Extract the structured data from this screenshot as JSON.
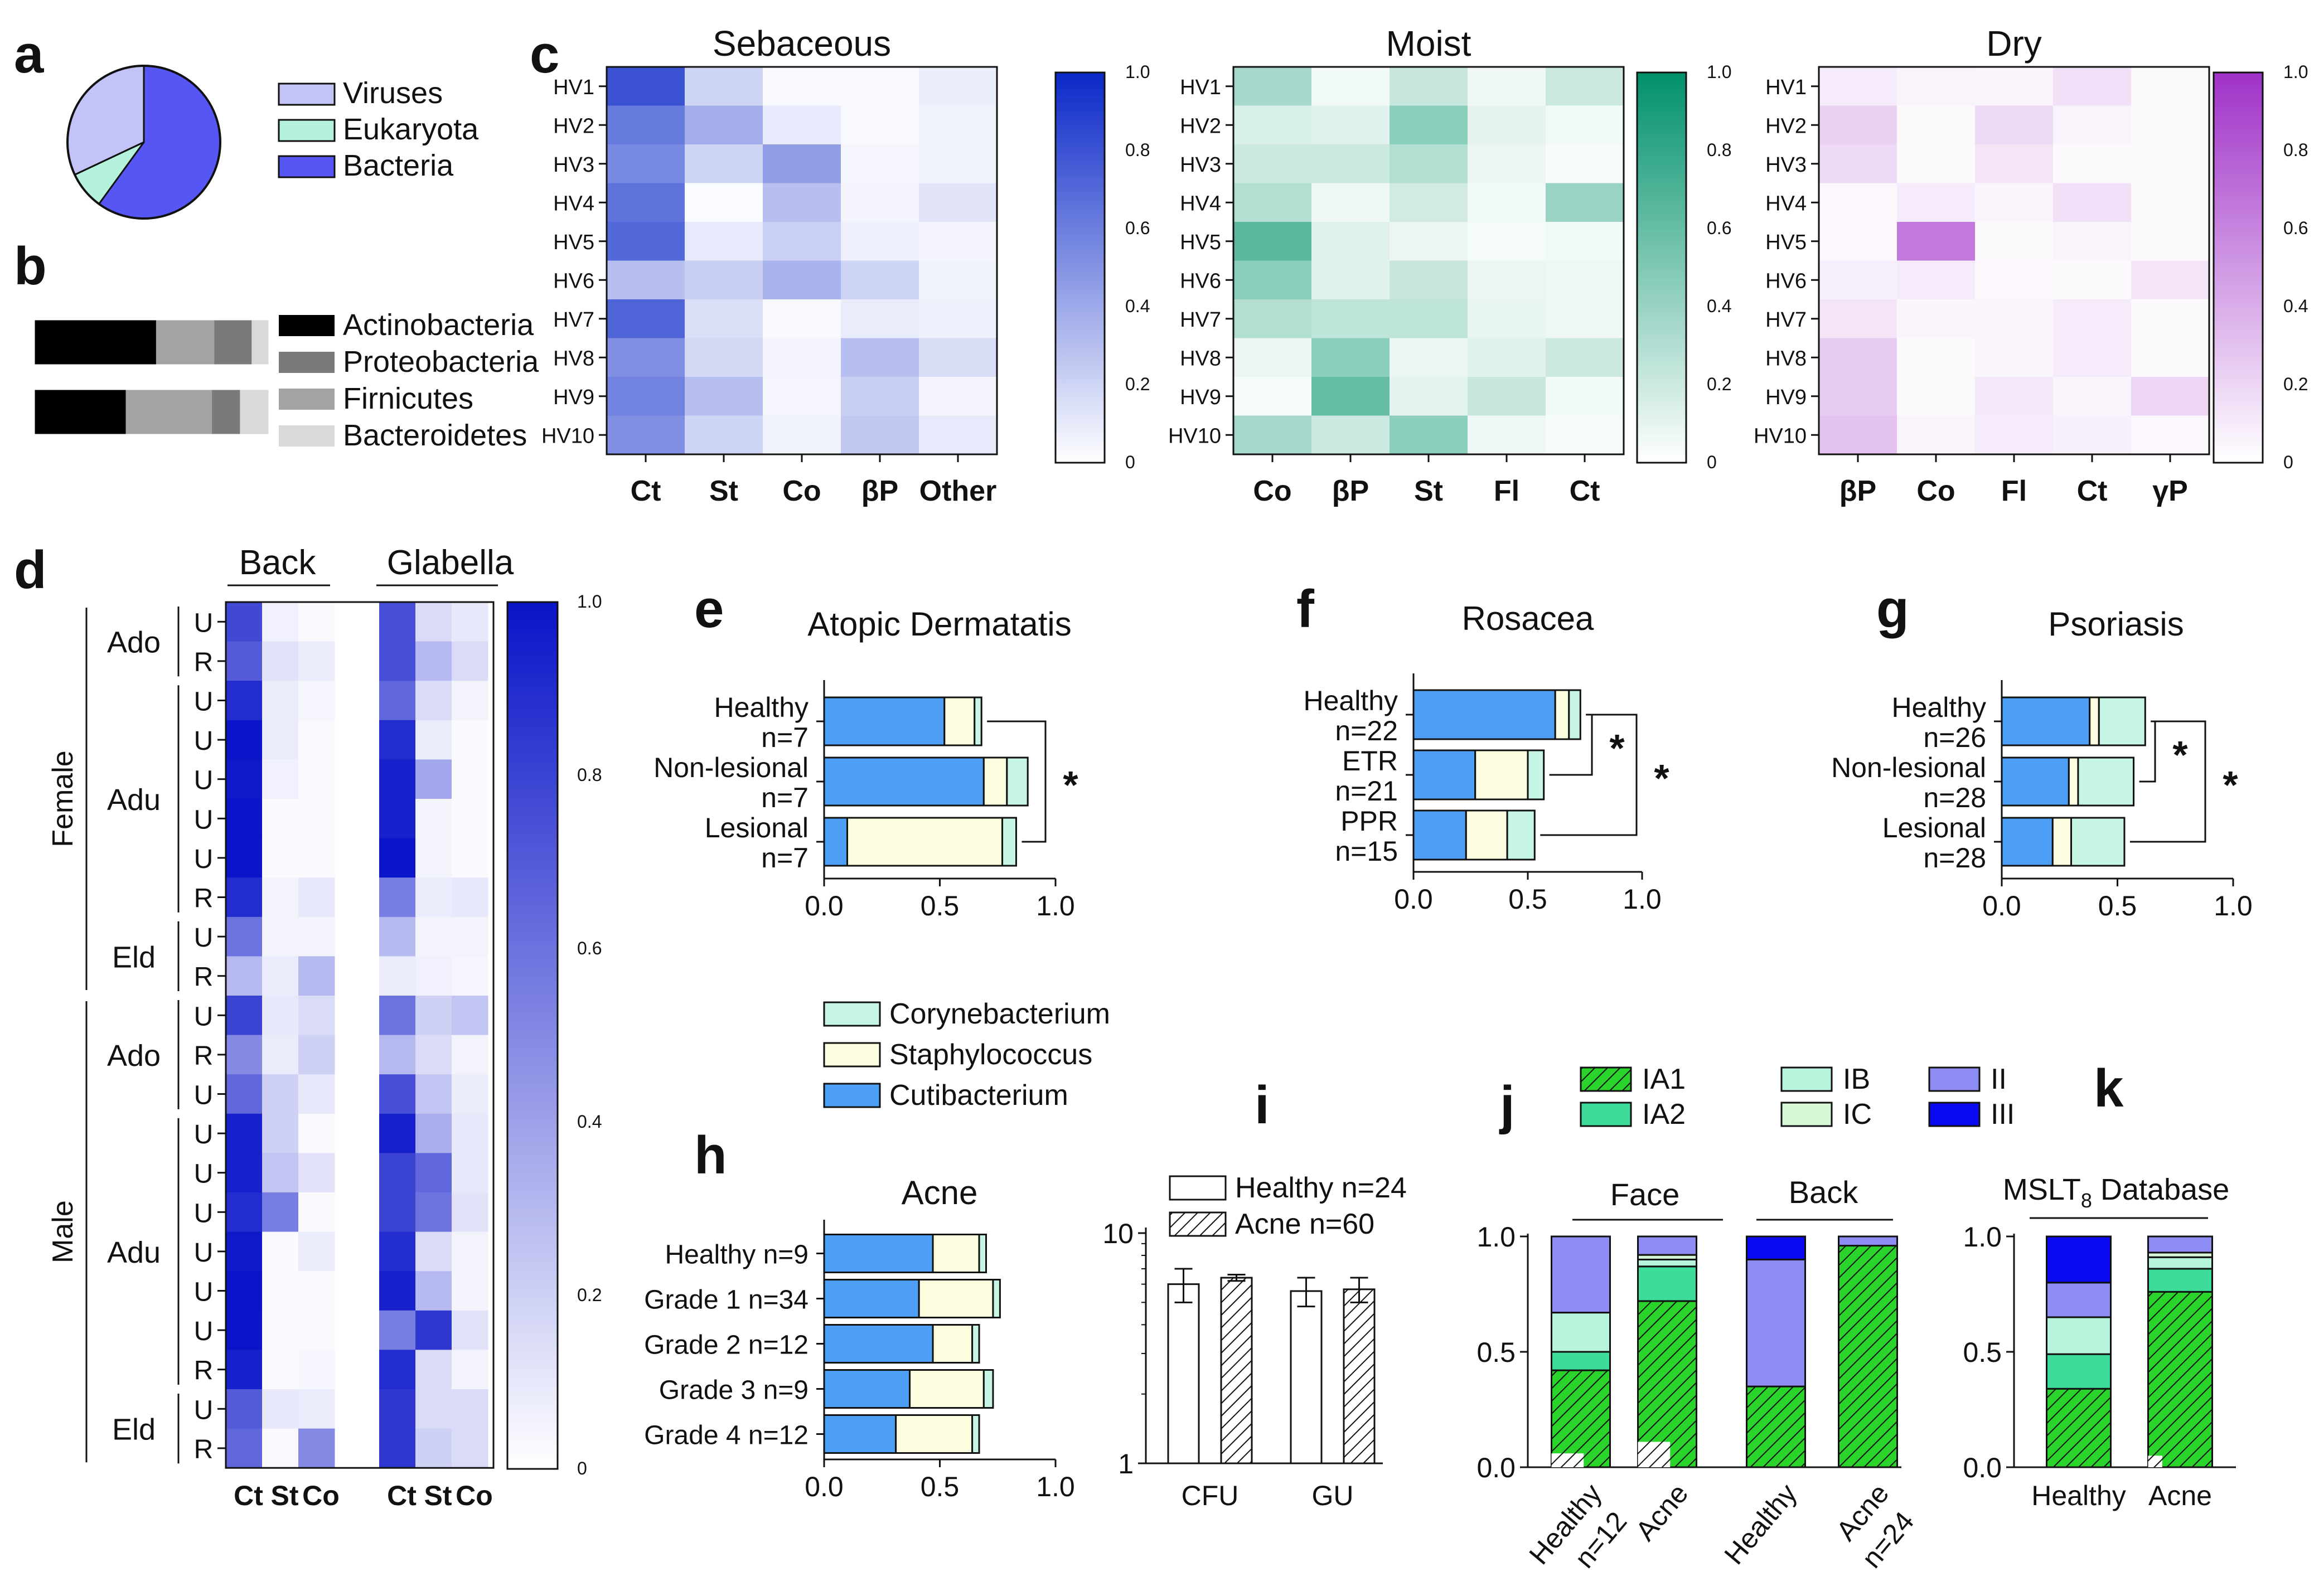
{
  "panel_letters": [
    "a",
    "b",
    "c",
    "d",
    "e",
    "f",
    "g",
    "h",
    "i",
    "j",
    "k"
  ],
  "chart_data": [
    {
      "id": "a",
      "type": "pie",
      "title": "",
      "slices": [
        {
          "label": "Bacteria",
          "value": 60,
          "color": "#5656f5"
        },
        {
          "label": "Eukaryota",
          "value": 8,
          "color": "#b4f2dc"
        },
        {
          "label": "Viruses",
          "value": 32,
          "color": "#c3c3f7"
        }
      ],
      "legend": [
        "Viruses",
        "Eukaryota",
        "Bacteria"
      ],
      "legend_colors": [
        "#c3c3f7",
        "#b4f2dc",
        "#5656f5"
      ]
    },
    {
      "id": "b",
      "type": "bar",
      "orientation": "horizontal-stacked",
      "categories": [
        "Actinobacteria",
        "Proteobacteria",
        "Firnicutes",
        "Bacteroidetes"
      ],
      "stack_order": [
        "Actinobacteria",
        "Firnicutes",
        "Proteobacteria",
        "Bacteroidetes"
      ],
      "colors": {
        "Actinobacteria": "#000000",
        "Proteobacteria": "#7a7a7a",
        "Firnicutes": "#a3a3a3",
        "Bacteroidetes": "#d9d9d9"
      },
      "rows": [
        {
          "values": {
            "Actinobacteria": 52,
            "Firnicutes": 25,
            "Proteobacteria": 16,
            "Bacteroidetes": 7
          }
        },
        {
          "values": {
            "Actinobacteria": 39,
            "Firnicutes": 37,
            "Proteobacteria": 12,
            "Bacteroidetes": 12
          }
        }
      ]
    },
    {
      "id": "c",
      "type": "heatmap",
      "color_range": [
        0,
        1
      ],
      "colorbar_ticks": [
        "1.0",
        "0.8",
        "0.6",
        "0.4",
        "0.2",
        "0"
      ],
      "row_labels": [
        "HV1",
        "HV2",
        "HV3",
        "HV4",
        "HV5",
        "HV6",
        "HV7",
        "HV8",
        "HV9",
        "HV10"
      ],
      "maps": [
        {
          "title": "Sebaceous",
          "color": "#0a28c8",
          "columns": [
            "Ct",
            "St",
            "Co",
            "βP",
            "Other"
          ],
          "values": [
            [
              0.8,
              0.2,
              0.03,
              0.03,
              0.08
            ],
            [
              0.62,
              0.38,
              0.1,
              0.03,
              0.06
            ],
            [
              0.55,
              0.2,
              0.45,
              0.04,
              0.06
            ],
            [
              0.65,
              0.02,
              0.3,
              0.05,
              0.12
            ],
            [
              0.7,
              0.1,
              0.22,
              0.07,
              0.05
            ],
            [
              0.3,
              0.23,
              0.35,
              0.2,
              0.06
            ],
            [
              0.72,
              0.15,
              0.03,
              0.09,
              0.07
            ],
            [
              0.52,
              0.18,
              0.05,
              0.3,
              0.16
            ],
            [
              0.58,
              0.3,
              0.04,
              0.23,
              0.05
            ],
            [
              0.52,
              0.2,
              0.06,
              0.25,
              0.1
            ]
          ]
        },
        {
          "title": "Moist",
          "color": "#00916a",
          "columns": [
            "Co",
            "βP",
            "St",
            "Fl",
            "Ct"
          ],
          "values": [
            [
              0.35,
              0.05,
              0.22,
              0.06,
              0.2
            ],
            [
              0.15,
              0.12,
              0.45,
              0.1,
              0.05
            ],
            [
              0.2,
              0.2,
              0.3,
              0.08,
              0.03
            ],
            [
              0.3,
              0.06,
              0.18,
              0.05,
              0.4
            ],
            [
              0.65,
              0.13,
              0.08,
              0.04,
              0.05
            ],
            [
              0.45,
              0.12,
              0.22,
              0.08,
              0.07
            ],
            [
              0.3,
              0.25,
              0.25,
              0.09,
              0.06
            ],
            [
              0.08,
              0.45,
              0.08,
              0.12,
              0.2
            ],
            [
              0.04,
              0.6,
              0.1,
              0.22,
              0.05
            ],
            [
              0.35,
              0.2,
              0.45,
              0.07,
              0.04
            ]
          ]
        },
        {
          "title": "Dry",
          "color": "#a032c8",
          "columns": [
            "βP",
            "Co",
            "Fl",
            "Ct",
            "γP"
          ],
          "values": [
            [
              0.1,
              0.06,
              0.05,
              0.15,
              0.03
            ],
            [
              0.22,
              0.03,
              0.18,
              0.06,
              0.03
            ],
            [
              0.18,
              0.03,
              0.13,
              0.03,
              0.03
            ],
            [
              0.04,
              0.1,
              0.05,
              0.15,
              0.03
            ],
            [
              0.04,
              0.65,
              0.03,
              0.06,
              0.03
            ],
            [
              0.08,
              0.1,
              0.04,
              0.03,
              0.12
            ],
            [
              0.12,
              0.05,
              0.05,
              0.1,
              0.03
            ],
            [
              0.25,
              0.03,
              0.05,
              0.1,
              0.03
            ],
            [
              0.25,
              0.03,
              0.11,
              0.05,
              0.2
            ],
            [
              0.3,
              0.05,
              0.1,
              0.08,
              0.04
            ]
          ]
        }
      ]
    },
    {
      "id": "d",
      "type": "heatmap",
      "color_range": [
        0,
        1
      ],
      "color": "#0a14c8",
      "colorbar_ticks": [
        "1.0",
        "0.8",
        "0.6",
        "0.4",
        "0.2",
        "0"
      ],
      "group_headers": [
        "Back",
        "Glabella"
      ],
      "columns": [
        "Ct",
        "St",
        "Co"
      ],
      "sex_labels": [
        "Female",
        "Male"
      ],
      "age_labels": [
        "Ado",
        "Adu",
        "Eld",
        "Ado",
        "Adu",
        "Eld"
      ],
      "row_labels": [
        "U",
        "R",
        "U",
        "U",
        "U",
        "U",
        "U",
        "R",
        "U",
        "R",
        "U",
        "R",
        "U",
        "U",
        "U",
        "U",
        "U",
        "U",
        "U",
        "R",
        "U",
        "R"
      ],
      "values_back": [
        [
          0.78,
          0.06,
          0.02
        ],
        [
          0.7,
          0.12,
          0.08
        ],
        [
          0.9,
          0.08,
          0.04
        ],
        [
          1.0,
          0.08,
          0.02
        ],
        [
          0.98,
          0.06,
          0.02
        ],
        [
          1.0,
          0.02,
          0.02
        ],
        [
          1.0,
          0.02,
          0.02
        ],
        [
          0.9,
          0.05,
          0.1
        ],
        [
          0.6,
          0.05,
          0.05
        ],
        [
          0.3,
          0.08,
          0.3
        ],
        [
          0.8,
          0.1,
          0.15
        ],
        [
          0.5,
          0.08,
          0.2
        ],
        [
          0.65,
          0.2,
          0.1
        ],
        [
          0.95,
          0.2,
          0.02
        ],
        [
          0.95,
          0.25,
          0.12
        ],
        [
          0.9,
          0.55,
          0.02
        ],
        [
          0.98,
          0.02,
          0.08
        ],
        [
          1.0,
          0.03,
          0.02
        ],
        [
          1.0,
          0.02,
          0.02
        ],
        [
          0.95,
          0.02,
          0.04
        ],
        [
          0.7,
          0.1,
          0.08
        ],
        [
          0.65,
          0.03,
          0.5
        ]
      ],
      "values_glabella": [
        [
          0.75,
          0.15,
          0.1
        ],
        [
          0.75,
          0.3,
          0.15
        ],
        [
          0.65,
          0.15,
          0.05
        ],
        [
          0.9,
          0.08,
          0.02
        ],
        [
          0.95,
          0.38,
          0.02
        ],
        [
          0.95,
          0.05,
          0.02
        ],
        [
          1.0,
          0.05,
          0.02
        ],
        [
          0.55,
          0.08,
          0.1
        ],
        [
          0.3,
          0.05,
          0.05
        ],
        [
          0.08,
          0.06,
          0.04
        ],
        [
          0.6,
          0.2,
          0.25
        ],
        [
          0.3,
          0.15,
          0.05
        ],
        [
          0.75,
          0.25,
          0.08
        ],
        [
          0.95,
          0.35,
          0.1
        ],
        [
          0.8,
          0.65,
          0.1
        ],
        [
          0.8,
          0.6,
          0.12
        ],
        [
          0.9,
          0.15,
          0.05
        ],
        [
          0.95,
          0.3,
          0.05
        ],
        [
          0.55,
          0.85,
          0.12
        ],
        [
          0.9,
          0.15,
          0.05
        ],
        [
          0.85,
          0.15,
          0.15
        ],
        [
          0.85,
          0.2,
          0.15
        ]
      ]
    },
    {
      "id": "e",
      "type": "bar",
      "orientation": "horizontal-stacked",
      "title": "Atopic Dermatatis",
      "categories": [
        "Healthy n=7",
        "Non-lesional n=7",
        "Lesional n=7"
      ],
      "series": [
        {
          "name": "Cutibacterium",
          "values": [
            0.52,
            0.69,
            0.1
          ]
        },
        {
          "name": "Staphylococcus",
          "values": [
            0.13,
            0.1,
            0.67
          ]
        },
        {
          "name": "Corynebacterium",
          "values": [
            0.03,
            0.09,
            0.06
          ]
        }
      ],
      "xlim": [
        0,
        1
      ],
      "xticks": [
        "0.0",
        "0.5",
        "1.0"
      ],
      "annotation": "*"
    },
    {
      "id": "f",
      "type": "bar",
      "orientation": "horizontal-stacked",
      "title": "Rosacea",
      "categories": [
        "Healthy n=22",
        "ETR n=21",
        "PPR n=15"
      ],
      "series": [
        {
          "name": "Cutibacterium",
          "values": [
            0.62,
            0.27,
            0.23
          ]
        },
        {
          "name": "Staphylococcus",
          "values": [
            0.06,
            0.23,
            0.18
          ]
        },
        {
          "name": "Corynebacterium",
          "values": [
            0.05,
            0.07,
            0.12
          ]
        }
      ],
      "xlim": [
        0,
        1
      ],
      "xticks": [
        "0.0",
        "0.5",
        "1.0"
      ],
      "annotation": "*"
    },
    {
      "id": "g",
      "type": "bar",
      "orientation": "horizontal-stacked",
      "title": "Psoriasis",
      "categories": [
        "Healthy n=26",
        "Non-lesional n=28",
        "Lesional n=28"
      ],
      "series": [
        {
          "name": "Cutibacterium",
          "values": [
            0.38,
            0.29,
            0.22
          ]
        },
        {
          "name": "Staphylococcus",
          "values": [
            0.04,
            0.04,
            0.08
          ]
        },
        {
          "name": "Corynebacterium",
          "values": [
            0.2,
            0.24,
            0.23
          ]
        }
      ],
      "xlim": [
        0,
        1
      ],
      "xticks": [
        "0.0",
        "0.5",
        "1.0"
      ],
      "annotation": "*"
    },
    {
      "id": "h",
      "type": "bar",
      "orientation": "horizontal-stacked",
      "title": "Acne",
      "categories": [
        "Healthy n=9",
        "Grade 1 n=34",
        "Grade 2 n=12",
        "Grade 3 n=9",
        "Grade 4 n=12"
      ],
      "series": [
        {
          "name": "Cutibacterium",
          "values": [
            0.47,
            0.41,
            0.47,
            0.37,
            0.31
          ]
        },
        {
          "name": "Staphylococcus",
          "values": [
            0.2,
            0.32,
            0.17,
            0.32,
            0.33
          ]
        },
        {
          "name": "Corynebacterium",
          "values": [
            0.03,
            0.03,
            0.03,
            0.04,
            0.03
          ]
        }
      ],
      "xlim": [
        0,
        1
      ],
      "xticks": [
        "0.0",
        "0.5",
        "1.0"
      ]
    },
    {
      "id": "i",
      "type": "bar",
      "orientation": "vertical-grouped",
      "yscale": "log",
      "categories": [
        "CFU",
        "GU"
      ],
      "series": [
        {
          "name": "Healthy n=24",
          "values": [
            6.0,
            5.6
          ],
          "errors": [
            1.0,
            0.8
          ]
        },
        {
          "name": "Acne n=60",
          "values": [
            6.4,
            5.7
          ],
          "errors": [
            0.2,
            0.7
          ]
        }
      ],
      "ylim": [
        1,
        10
      ],
      "yticks": [
        "10",
        "1"
      ]
    },
    {
      "id": "j",
      "type": "bar",
      "orientation": "vertical-stacked",
      "group_headers": [
        "Face",
        "Back"
      ],
      "categories": [
        "Healthy n=12",
        "Acne",
        "Healthy",
        "Acne n=24"
      ],
      "series": [
        {
          "name": "IA1",
          "values": [
            0.42,
            0.72,
            0.35,
            0.96
          ]
        },
        {
          "name": "IA2",
          "values": [
            0.08,
            0.15,
            0.0,
            0.0
          ]
        },
        {
          "name": "IB",
          "values": [
            0.17,
            0.03,
            0.0,
            0.0
          ]
        },
        {
          "name": "IC",
          "values": [
            0.0,
            0.02,
            0.0,
            0.0
          ]
        },
        {
          "name": "II",
          "values": [
            0.33,
            0.08,
            0.55,
            0.04
          ]
        },
        {
          "name": "III",
          "values": [
            0.0,
            0.0,
            0.1,
            0.0
          ]
        }
      ],
      "ylim": [
        0,
        1
      ],
      "yticks": [
        "1.0",
        "0.5",
        "0.0"
      ]
    },
    {
      "id": "k",
      "type": "bar",
      "orientation": "vertical-stacked",
      "title": "MSLT",
      "title_subscript": "8",
      "title_suffix": " Database",
      "categories": [
        "Healthy",
        "Acne"
      ],
      "series": [
        {
          "name": "IA1",
          "values": [
            0.34,
            0.76
          ]
        },
        {
          "name": "IA2",
          "values": [
            0.15,
            0.1
          ]
        },
        {
          "name": "IB",
          "values": [
            0.16,
            0.05
          ]
        },
        {
          "name": "IC",
          "values": [
            0.0,
            0.02
          ]
        },
        {
          "name": "II",
          "values": [
            0.15,
            0.07
          ]
        },
        {
          "name": "III",
          "values": [
            0.2,
            0.0
          ]
        }
      ],
      "ylim": [
        0,
        1
      ],
      "yticks": [
        "1.0",
        "0.5",
        "0.0"
      ]
    }
  ],
  "legend_efgh": [
    {
      "name": "Corynebacterium",
      "color": "#c6f5e3"
    },
    {
      "name": "Staphylococcus",
      "color": "#fdfde0"
    },
    {
      "name": "Cutibacterium",
      "color": "#4d9ff5"
    }
  ],
  "legend_jk": [
    {
      "name": "IA1",
      "color": "#2bd42b",
      "hatch": true
    },
    {
      "name": "IA2",
      "color": "#3ddc9a",
      "hatch": false
    },
    {
      "name": "IB",
      "color": "#b7f4dc",
      "hatch": false
    },
    {
      "name": "IC",
      "color": "#d7f8d7",
      "hatch": false
    },
    {
      "name": "II",
      "color": "#8c8cf2",
      "hatch": false
    },
    {
      "name": "III",
      "color": "#0a0af0",
      "hatch": false
    }
  ]
}
